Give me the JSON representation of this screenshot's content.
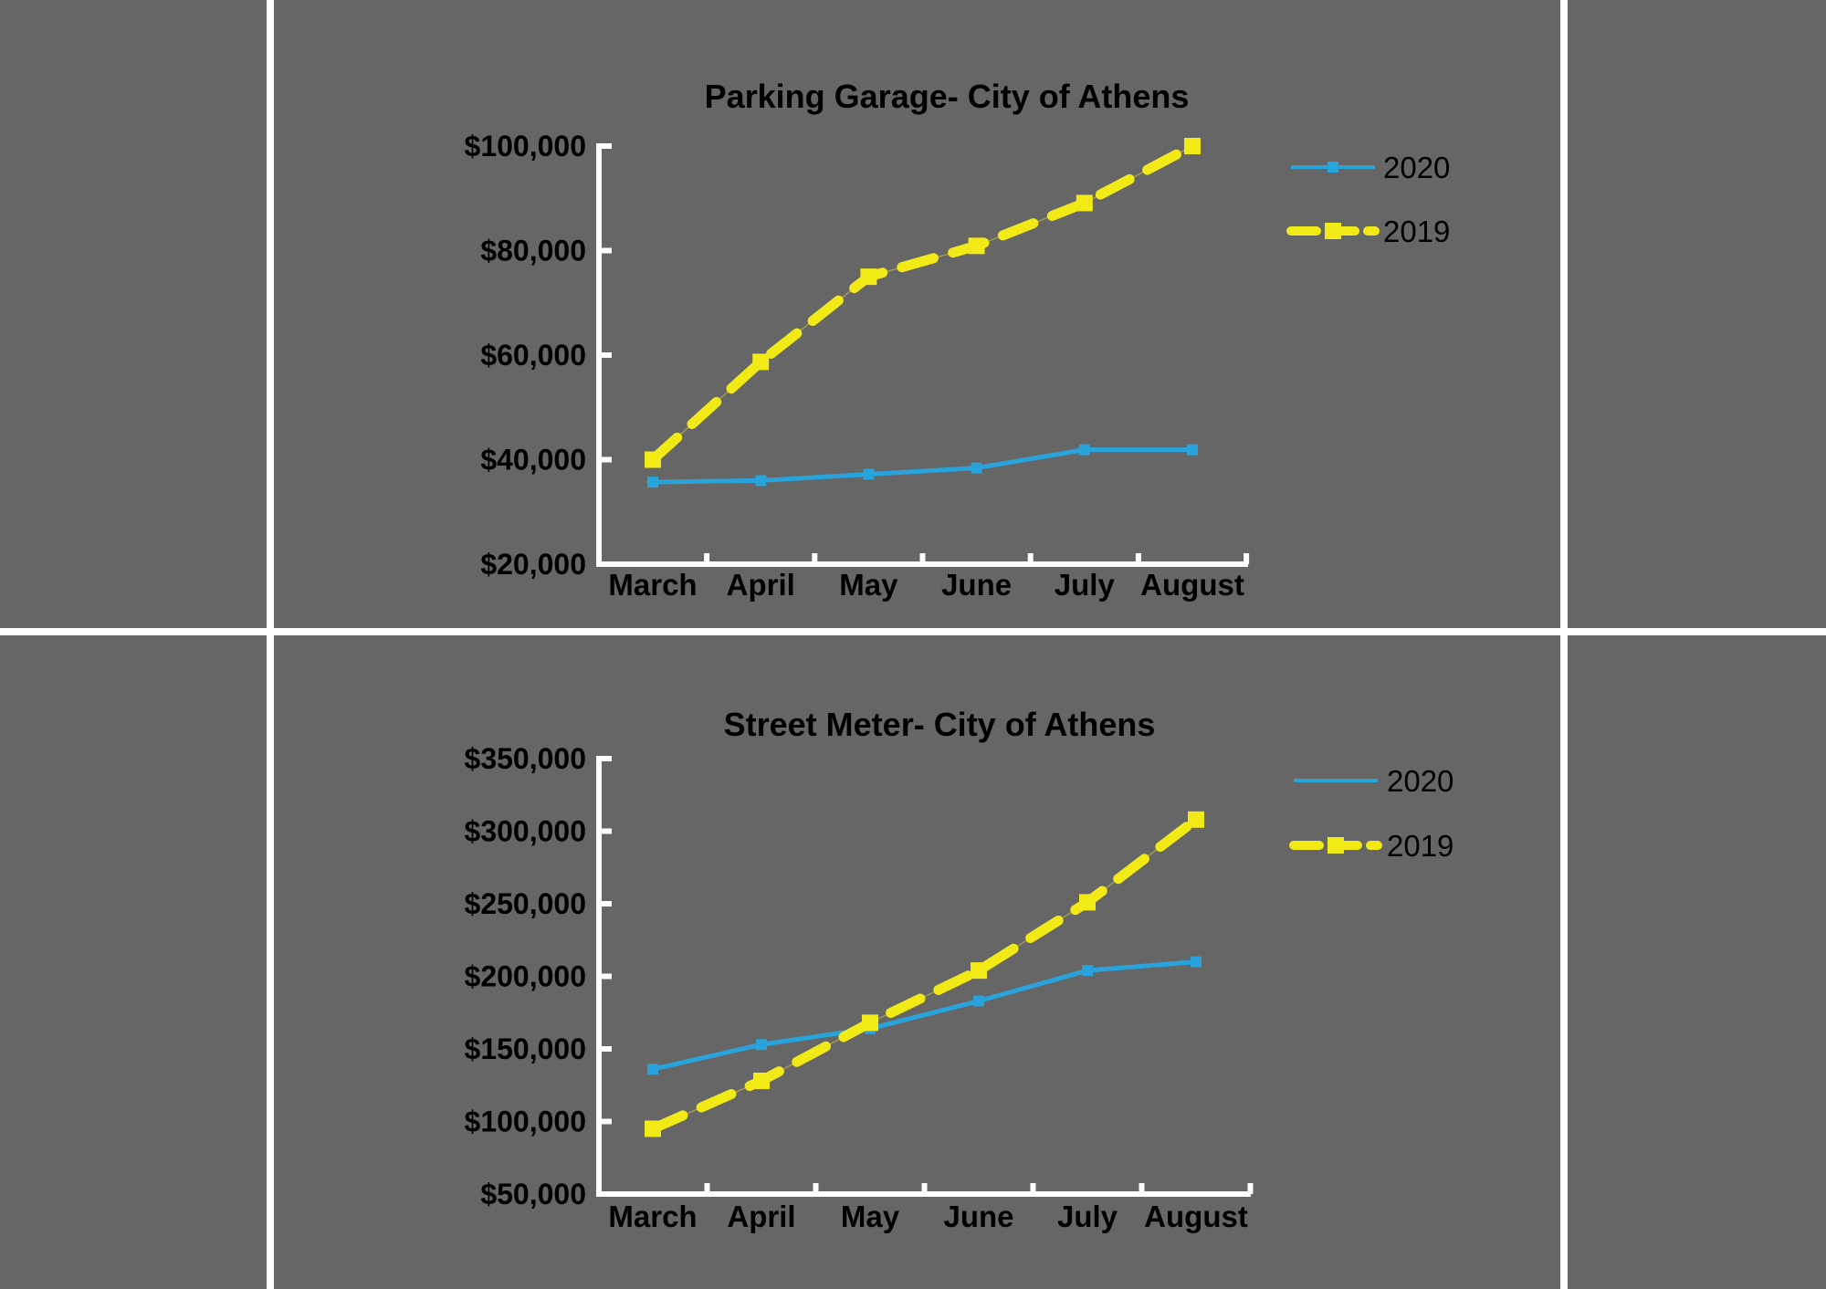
{
  "colors": {
    "background": "#666666",
    "series_2020": "#29a3dc",
    "series_2019": "#f2ea16",
    "axis": "#ffffff",
    "divider": "#ffffff"
  },
  "chart_data": [
    {
      "type": "line",
      "title": "Parking Garage- City of Athens",
      "xlabel": "",
      "ylabel": "",
      "categories": [
        "March",
        "April",
        "May",
        "June",
        "July",
        "August"
      ],
      "ylim": [
        20000,
        100000
      ],
      "yticks": [
        20000,
        40000,
        60000,
        80000,
        100000
      ],
      "ytick_labels": [
        "$20,000",
        "$40,000",
        "$60,000",
        "$80,000",
        "$100,000"
      ],
      "legend_position": "right",
      "series": [
        {
          "name": "2020",
          "style": "solid",
          "markers": true,
          "legend_marker": true,
          "values": [
            35700,
            36000,
            37200,
            38400,
            41900,
            41900
          ]
        },
        {
          "name": "2019",
          "style": "dashed",
          "markers": true,
          "legend_marker": true,
          "values": [
            40000,
            58700,
            75000,
            80900,
            89100,
            100000
          ]
        }
      ]
    },
    {
      "type": "line",
      "title": "Street Meter- City of Athens",
      "xlabel": "",
      "ylabel": "",
      "categories": [
        "March",
        "April",
        "May",
        "June",
        "July",
        "August"
      ],
      "ylim": [
        50000,
        350000
      ],
      "yticks": [
        50000,
        100000,
        150000,
        200000,
        250000,
        300000,
        350000
      ],
      "ytick_labels": [
        "$50,000",
        "$100,000",
        "$150,000",
        "$200,000",
        "$250,000",
        "$300,000",
        "$350,000"
      ],
      "legend_position": "right",
      "series": [
        {
          "name": "2020",
          "style": "solid",
          "markers": true,
          "legend_marker": false,
          "values": [
            136000,
            153000,
            164000,
            183000,
            204000,
            210000
          ]
        },
        {
          "name": "2019",
          "style": "dashed",
          "markers": true,
          "legend_marker": true,
          "values": [
            95000,
            128000,
            168000,
            204000,
            251000,
            308000
          ]
        }
      ]
    }
  ]
}
